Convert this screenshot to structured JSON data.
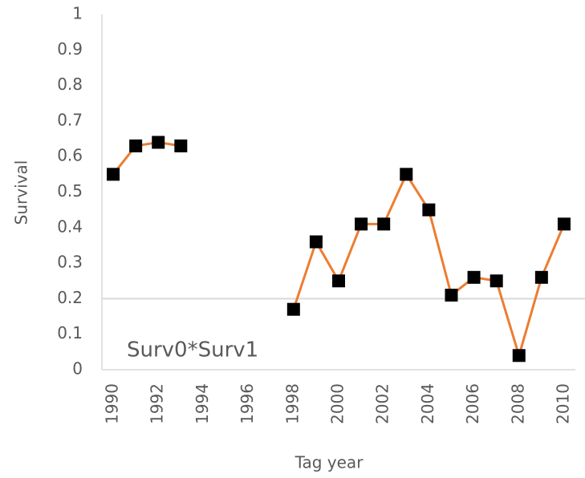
{
  "chart_data": {
    "type": "line",
    "x": [
      1990,
      1991,
      1992,
      1993,
      1994,
      1995,
      1996,
      1997,
      1998,
      1999,
      2000,
      2001,
      2002,
      2003,
      2004,
      2005,
      2006,
      2007,
      2008,
      2009,
      2010
    ],
    "series": [
      {
        "name": "Survival",
        "color": "#ed7d31",
        "marker_color": "#000000",
        "values": [
          0.55,
          0.63,
          0.64,
          0.63,
          null,
          null,
          null,
          null,
          0.17,
          0.36,
          0.25,
          0.41,
          0.41,
          0.55,
          0.45,
          0.21,
          0.26,
          0.25,
          0.04,
          0.26,
          0.41
        ]
      }
    ],
    "xlim": [
      1989.5,
      2010.5
    ],
    "xticks": [
      1990,
      1992,
      1994,
      1996,
      1998,
      2000,
      2002,
      2004,
      2006,
      2008,
      2010
    ],
    "ylim": [
      0,
      1
    ],
    "yticks": [
      0,
      0.1,
      0.2,
      0.3,
      0.4,
      0.5,
      0.6,
      0.7,
      0.8,
      0.9,
      1
    ],
    "reference_line": 0.2,
    "xlabel": "Tag year",
    "ylabel": "Survival",
    "annotation": "Surv0*Surv1"
  }
}
